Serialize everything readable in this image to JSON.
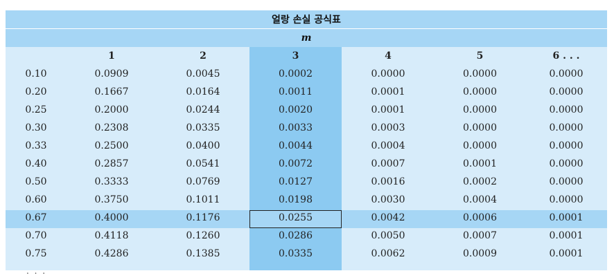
{
  "title": "얼랑 손실 공식표",
  "header_label": "m",
  "columns": [
    "",
    "1",
    "2",
    "3",
    "4",
    "5",
    "6 . . ."
  ],
  "rows": [
    [
      "0.10",
      "0.0909",
      "0.0045",
      "0.0002",
      "0.0000",
      "0.0000",
      "0.0000"
    ],
    [
      "0.20",
      "0.1667",
      "0.0164",
      "0.0011",
      "0.0001",
      "0.0000",
      "0.0000"
    ],
    [
      "0.25",
      "0.2000",
      "0.0244",
      "0.0020",
      "0.0001",
      "0.0000",
      "0.0000"
    ],
    [
      "0.30",
      "0.2308",
      "0.0335",
      "0.0033",
      "0.0003",
      "0.0000",
      "0.0000"
    ],
    [
      "0.33",
      "0.2500",
      "0.0400",
      "0.0044",
      "0.0004",
      "0.0000",
      "0.0000"
    ],
    [
      "0.40",
      "0.2857",
      "0.0541",
      "0.0072",
      "0.0007",
      "0.0001",
      "0.0000"
    ],
    [
      "0.50",
      "0.3333",
      "0.0769",
      "0.0127",
      "0.0016",
      "0.0002",
      "0.0000"
    ],
    [
      "0.60",
      "0.3750",
      "0.1011",
      "0.0198",
      "0.0030",
      "0.0004",
      "0.0000"
    ],
    [
      "0.67",
      "0.4000",
      "0.1176",
      "0.0255",
      "0.0042",
      "0.0006",
      "0.0001"
    ],
    [
      "0.70",
      "0.4118",
      "0.1260",
      "0.0286",
      "0.0050",
      "0.0007",
      "0.0001"
    ],
    [
      "0.75",
      "0.4286",
      "0.1385",
      "0.0335",
      "0.0062",
      "0.0009",
      "0.0001"
    ]
  ],
  "continuation": ". . .",
  "colors": {
    "band": "#a6d6f5",
    "body": "#d7ecfa",
    "highlight_column": "#8ccaf1"
  }
}
